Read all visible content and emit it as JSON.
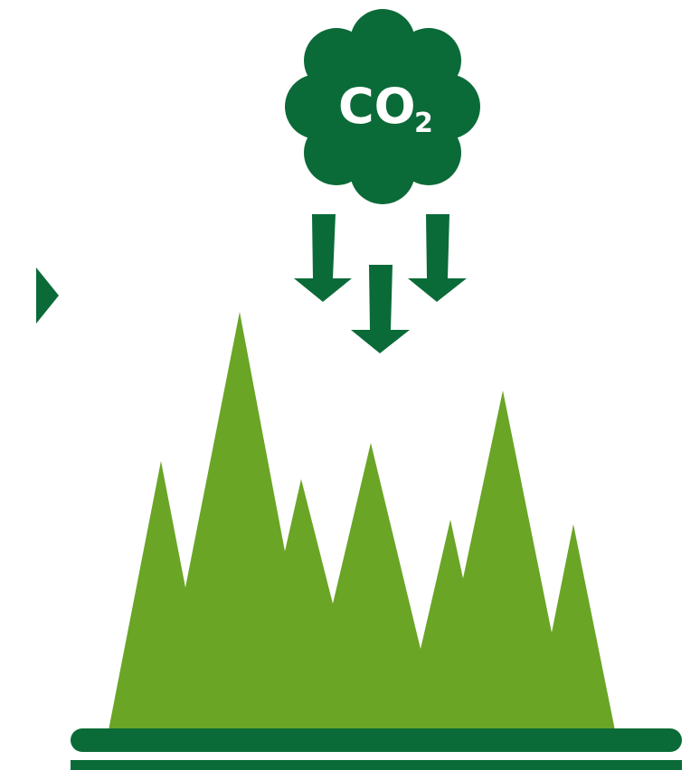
{
  "cloud": {
    "label": "CO",
    "subscript": "2"
  }
}
